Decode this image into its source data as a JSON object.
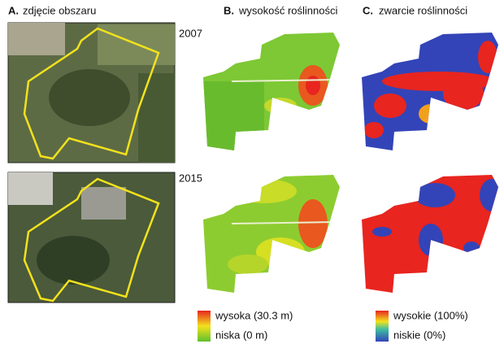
{
  "panels": [
    {
      "label": "A.",
      "title": "zdjęcie obszaru"
    },
    {
      "label": "B.",
      "title": "wysokość roślinności"
    },
    {
      "label": "C.",
      "title": "zwarcie roślinności"
    }
  ],
  "years": [
    "2007",
    "2015"
  ],
  "legends": [
    {
      "high": "wysoka (30.3 m)",
      "low": "niska (0 m)"
    },
    {
      "high": "wysokie (100%)",
      "low": "niskie (0%)"
    }
  ]
}
